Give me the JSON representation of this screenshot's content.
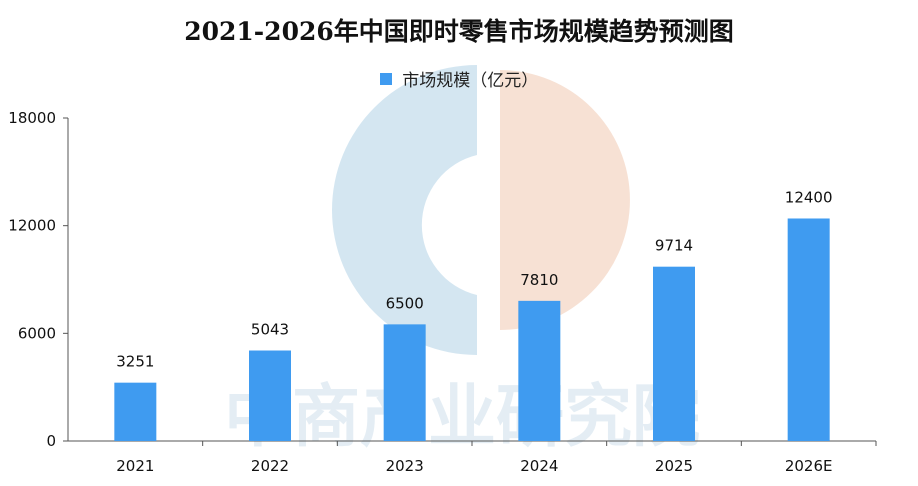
{
  "chart_data": {
    "type": "bar",
    "title": "2021-2026年中国即时零售市场规模趋势预测图",
    "categories": [
      "2021",
      "2022",
      "2023",
      "2024",
      "2025",
      "2026E"
    ],
    "series": [
      {
        "name": "市场规模（亿元）",
        "values": [
          3251,
          5043,
          6500,
          7810,
          9714,
          12400
        ]
      }
    ],
    "data_labels": [
      "3251",
      "5043",
      "6500",
      "7810",
      "9714",
      "12400"
    ],
    "y_ticks": [
      0,
      6000,
      12000,
      18000
    ],
    "ylim": [
      0,
      18000
    ],
    "xlabel": "",
    "ylabel": "",
    "grid": false,
    "legend_position": "top-center",
    "bar_color": "#3f9bf0"
  },
  "watermark": {
    "text": "中商产业研究院",
    "logo_left_color": "#cde2ee",
    "logo_right_color": "#f6dccd"
  }
}
